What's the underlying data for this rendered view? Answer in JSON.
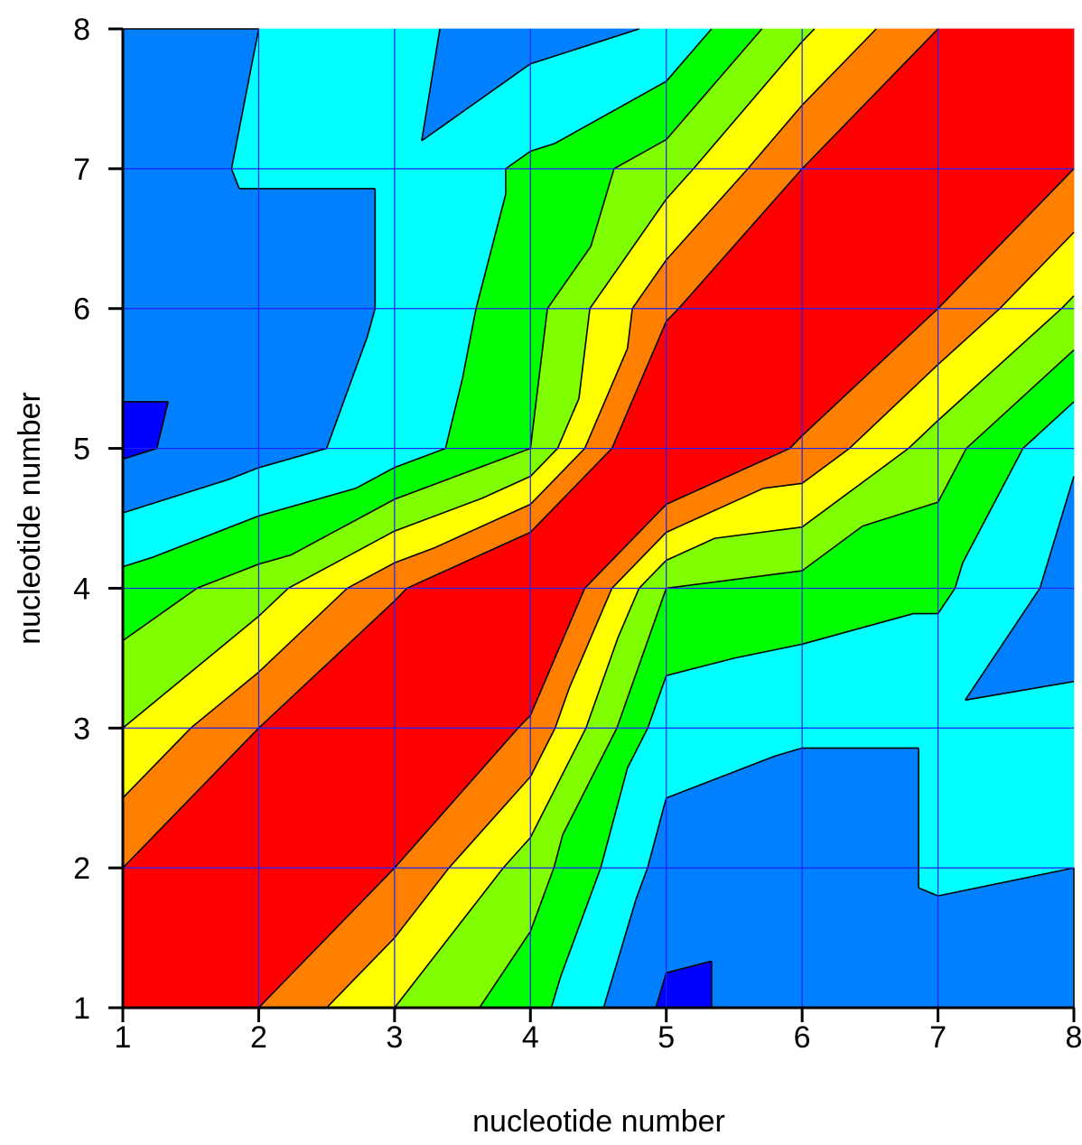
{
  "chart_data": {
    "type": "heatmap",
    "subtype": "filled-contour",
    "title": "",
    "xlabel": "nucleotide number",
    "ylabel": "nucleotide number",
    "xlim": [
      1,
      8
    ],
    "ylim": [
      1,
      8
    ],
    "x_ticks": [
      "1",
      "2",
      "3",
      "4",
      "5",
      "6",
      "7",
      "8"
    ],
    "y_ticks": [
      "1",
      "2",
      "3",
      "4",
      "5",
      "6",
      "7",
      "8"
    ],
    "grid": true,
    "grid_color": "#2020ff",
    "legend": "none",
    "x": [
      1,
      2,
      3,
      4,
      5,
      6,
      7,
      8
    ],
    "y": [
      1,
      2,
      3,
      4,
      5,
      6,
      7,
      8
    ],
    "z": [
      [
        10.0,
        8.0,
        6.0,
        4.4,
        1.8,
        2.4,
        2.6,
        3.0
      ],
      [
        8.0,
        10.0,
        8.0,
        5.5,
        2.6,
        2.4,
        3.1,
        3.0
      ],
      [
        6.0,
        8.0,
        10.0,
        7.8,
        3.4,
        3.1,
        3.1,
        3.2
      ],
      [
        4.4,
        5.5,
        7.8,
        10.0,
        5.0,
        4.6,
        4.2,
        2.6
      ],
      [
        1.8,
        2.6,
        3.4,
        5.0,
        10.0,
        7.8,
        5.5,
        3.1
      ],
      [
        2.4,
        2.4,
        3.1,
        4.6,
        7.8,
        10.0,
        8.0,
        5.8
      ],
      [
        2.6,
        3.1,
        3.1,
        4.2,
        5.5,
        8.0,
        10.0,
        8.0
      ],
      [
        3.0,
        3.0,
        3.2,
        2.6,
        3.1,
        5.8,
        8.0,
        10.0
      ]
    ],
    "levels": [
      0,
      2,
      3,
      4,
      5,
      6,
      7,
      8,
      9,
      11
    ],
    "level_colors": [
      "#0000ff",
      "#0080ff",
      "#00ffff",
      "#00ff00",
      "#80ff00",
      "#ffff00",
      "#ff8000",
      "#ff0000",
      "#ff0000"
    ],
    "contour_line_color": "#000000"
  }
}
